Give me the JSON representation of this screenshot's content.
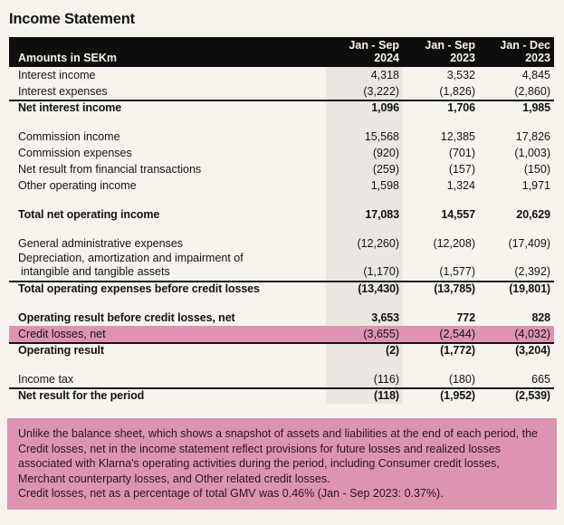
{
  "colors": {
    "page-bg": "#f7f4ee",
    "text": "#131313",
    "header-bg": "#0f0e0c",
    "header-text": "#f7f4ee",
    "band": "#eae7e2",
    "pink": "#de93b4",
    "footnote-bg": "#dd93b2",
    "footnote-text": "#2a161f",
    "rule": "#131313"
  },
  "page": {
    "title": "Income Statement"
  },
  "table": {
    "corner_label": "Amounts in SEKm",
    "columns": [
      {
        "period": "Jan - Sep",
        "year": "2024",
        "highlighted": true
      },
      {
        "period": "Jan - Sep",
        "year": "2023",
        "highlighted": false
      },
      {
        "period": "Jan - Dec",
        "year": "2023",
        "highlighted": false
      }
    ],
    "rows": [
      {
        "label": "Interest income",
        "values": [
          "4,318",
          "3,532",
          "4,845"
        ]
      },
      {
        "label": "Interest expenses",
        "values": [
          "(3,222)",
          "(1,826)",
          "(2,860)"
        ]
      },
      {
        "label": "Net interest income",
        "values": [
          "1,096",
          "1,706",
          "1,985"
        ],
        "bold": true,
        "rule_above": true
      },
      {
        "label": "Commission income",
        "values": [
          "15,568",
          "12,385",
          "17,826"
        ],
        "spacer_before": true
      },
      {
        "label": "Commission expenses",
        "values": [
          "(920)",
          "(701)",
          "(1,003)"
        ]
      },
      {
        "label": "Net result from financial transactions",
        "values": [
          "(259)",
          "(157)",
          "(150)"
        ]
      },
      {
        "label": "Other operating income",
        "values": [
          "1,598",
          "1,324",
          "1,971"
        ]
      },
      {
        "label": "Total net operating income",
        "values": [
          "17,083",
          "14,557",
          "20,629"
        ],
        "bold": true,
        "spacer_before": true
      },
      {
        "label": "General administrative expenses",
        "values": [
          "(12,260)",
          "(12,208)",
          "(17,409)"
        ],
        "spacer_before": true
      },
      {
        "label": "Depreciation, amortization and impairment of",
        "label2": "intangible and tangible assets",
        "values": [
          "(1,170)",
          "(1,577)",
          "(2,392)"
        ]
      },
      {
        "label": "Total operating expenses before credit losses",
        "values": [
          "(13,430)",
          "(13,785)",
          "(19,801)"
        ],
        "bold": true,
        "rule_above": true
      },
      {
        "label": "Operating result before credit losses, net",
        "values": [
          "3,653",
          "772",
          "828"
        ],
        "bold": true,
        "spacer_before": true
      },
      {
        "label": "Credit losses, net",
        "values": [
          "(3,655)",
          "(2,544)",
          "(4,032)"
        ],
        "highlight": true
      },
      {
        "label": "Operating result",
        "values": [
          "(2)",
          "(1,772)",
          "(3,204)"
        ],
        "bold": true,
        "rule_above": true
      },
      {
        "label": "Income tax",
        "values": [
          "(116)",
          "(180)",
          "665"
        ],
        "spacer_before": true
      },
      {
        "label": "Net result for the period",
        "values": [
          "(118)",
          "(1,952)",
          "(2,539)"
        ],
        "bold": true,
        "rule_above": true
      }
    ]
  },
  "footnote": {
    "lines": [
      "Unlike the balance sheet, which shows a snapshot of assets and liabilities at the end of each period, the Credit losses, net in the income statement reflect provisions for future losses and realized losses associated with Klarna's operating activities during the period, including Consumer credit losses, Merchant counterparty losses, and Other related credit losses.",
      "Credit losses, net as a percentage of total GMV was 0.46% (Jan - Sep 2023: 0.37%)."
    ]
  }
}
